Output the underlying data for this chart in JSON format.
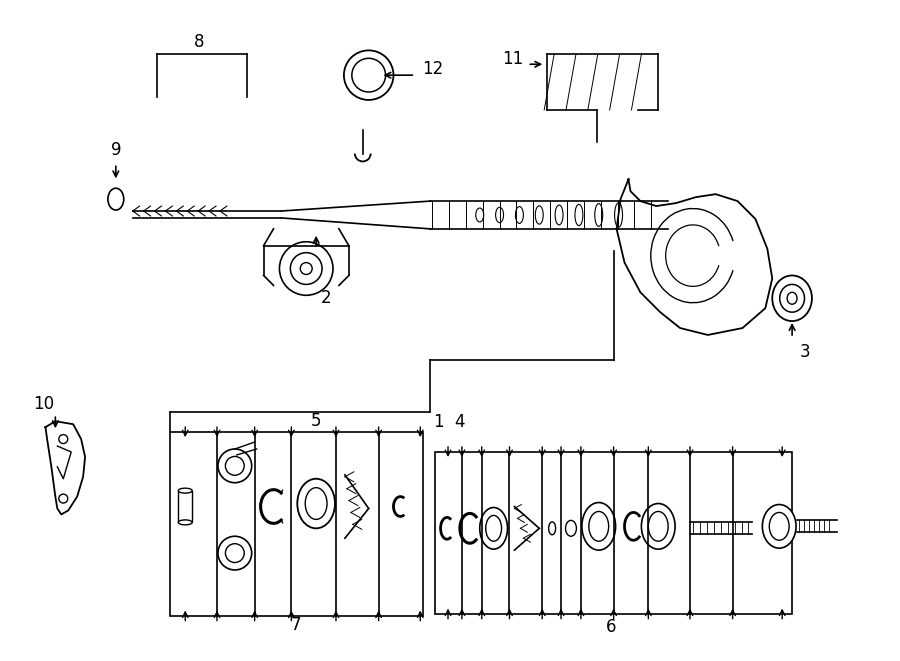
{
  "bg_color": "#ffffff",
  "line_color": "#000000",
  "fig_width": 9.0,
  "fig_height": 6.61,
  "title": ""
}
